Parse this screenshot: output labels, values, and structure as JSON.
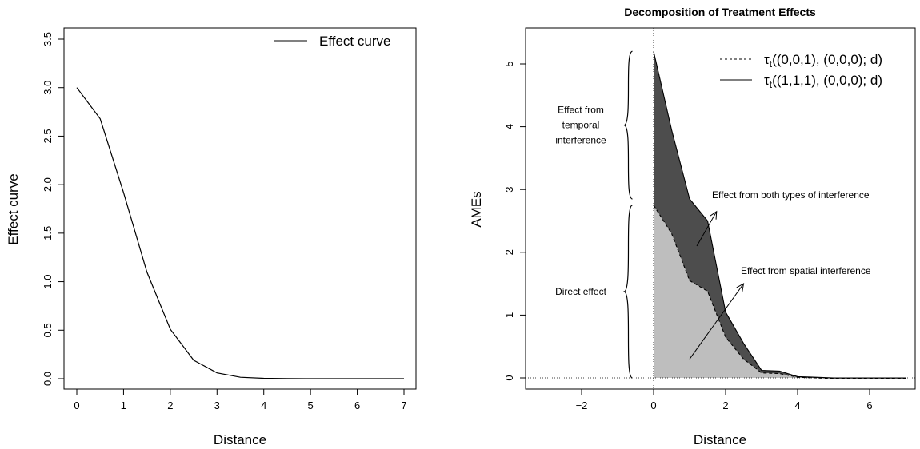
{
  "chart_data": [
    {
      "type": "line",
      "title": "",
      "xlabel": "Distance",
      "ylabel": "Effect curve",
      "xlim": [
        0,
        7
      ],
      "ylim": [
        0,
        3.5
      ],
      "x_ticks": [
        "0",
        "1",
        "2",
        "3",
        "4",
        "5",
        "6",
        "7"
      ],
      "y_ticks": [
        "0.0",
        "0.5",
        "1.0",
        "1.5",
        "2.0",
        "2.5",
        "3.0",
        "3.5"
      ],
      "legend": {
        "position": "top-right",
        "entries": [
          "Effect curve"
        ]
      },
      "series": [
        {
          "name": "Effect curve",
          "x": [
            0,
            0.5,
            1,
            1.5,
            2,
            2.5,
            3,
            3.5,
            4,
            4.5,
            5,
            5.5,
            6,
            6.5,
            7
          ],
          "y": [
            3.0,
            2.68,
            1.92,
            1.1,
            0.51,
            0.19,
            0.06,
            0.015,
            0.004,
            0.001,
            0,
            0,
            0,
            0,
            0
          ]
        }
      ]
    },
    {
      "type": "area",
      "title": "Decomposition of Treatment Effects",
      "xlabel": "Distance",
      "ylabel": "AMEs",
      "xlim": [
        -3.2,
        7.2
      ],
      "ylim": [
        -0.1,
        5.3
      ],
      "x_ticks": [
        "−2",
        "0",
        "2",
        "4",
        "6"
      ],
      "y_ticks": [
        "0",
        "1",
        "2",
        "3",
        "4",
        "5"
      ],
      "grid": false,
      "legend": {
        "position": "top-right",
        "entries": [
          "τt((0,0,1), (0,0,0); d)",
          "τt((1,1,1), (0,0,0); d)"
        ]
      },
      "series": [
        {
          "name": "τt((0,0,1), (0,0,0); d)",
          "style": "dashed",
          "fill": "#bebebe",
          "x": [
            0,
            0.5,
            1,
            1.5,
            2,
            2.5,
            3,
            3.5,
            4,
            4.5,
            5,
            5.5,
            6,
            6.5,
            7
          ],
          "y": [
            2.75,
            2.3,
            1.55,
            1.38,
            0.65,
            0.3,
            0.08,
            0.07,
            0.01,
            0,
            -0.01,
            -0.01,
            -0.01,
            -0.01,
            -0.01
          ]
        },
        {
          "name": "τt((1,1,1), (0,0,0); d)",
          "style": "solid",
          "fill": "#4d4d4d",
          "x": [
            0,
            0.5,
            1,
            1.5,
            2,
            2.5,
            3,
            3.5,
            4,
            4.5,
            5,
            5.5,
            6,
            6.5,
            7
          ],
          "y": [
            5.2,
            3.95,
            2.85,
            2.5,
            1.05,
            0.55,
            0.12,
            0.11,
            0.02,
            0.01,
            0,
            0,
            0,
            0,
            0
          ]
        }
      ],
      "reference_lines": {
        "vertical": 0,
        "horizontal": 0,
        "style": "dotted"
      },
      "annotations": [
        {
          "text": "Effect from both types of interference",
          "arrow_from": [
            1.2,
            2.1
          ],
          "arrow_to": [
            1.75,
            2.65
          ]
        },
        {
          "text": "Effect from spatial interference",
          "arrow_from": [
            1.0,
            0.3
          ],
          "arrow_to": [
            2.5,
            1.5
          ]
        }
      ],
      "braces": [
        {
          "text": [
            "Effect from",
            "temporal",
            "interference"
          ],
          "x": -0.5,
          "from": 2.85,
          "to": 5.2
        },
        {
          "text": [
            "Direct effect"
          ],
          "x": -0.5,
          "from": 0,
          "to": 2.75
        }
      ]
    }
  ]
}
